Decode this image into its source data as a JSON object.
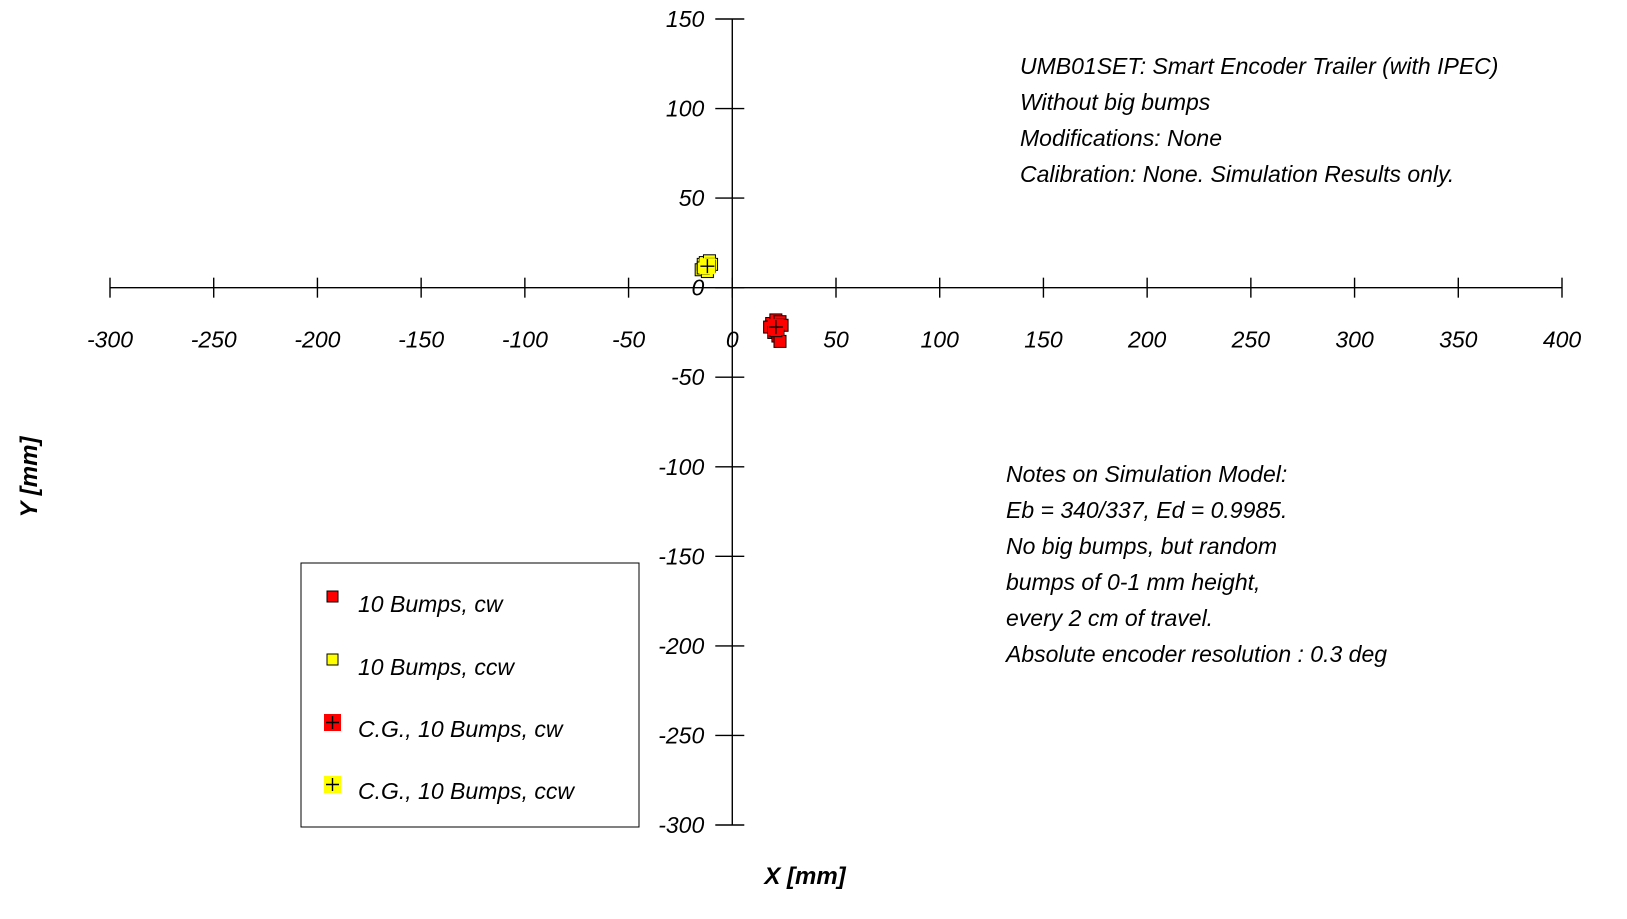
{
  "chart_data": {
    "type": "scatter",
    "xlabel": "X [mm]",
    "ylabel": "Y [mm]",
    "xlim": [
      -300,
      400
    ],
    "ylim": [
      -300,
      150
    ],
    "x_ticks": [
      -300,
      -250,
      -200,
      -150,
      -100,
      -50,
      0,
      50,
      100,
      150,
      200,
      250,
      300,
      350,
      400
    ],
    "y_ticks": [
      150,
      100,
      50,
      0,
      -50,
      -100,
      -150,
      -200,
      -250,
      -300
    ],
    "x_tick_labels": [
      "-300",
      "-250",
      "-200",
      "-150",
      "-100",
      "-50",
      "0",
      "50",
      "100",
      "150",
      "200",
      "250",
      "300",
      "350",
      "400"
    ],
    "y_tick_labels": [
      "150",
      "100",
      "50",
      "0",
      "-50",
      "-100",
      "-150",
      "-200",
      "-250",
      "-300"
    ],
    "grid": false,
    "legend_position": "bottom-left",
    "series": [
      {
        "name": "10 Bumps, cw",
        "marker": "small-square",
        "color": "#ff0000",
        "points": [
          [
            19,
            -20
          ],
          [
            21,
            -18
          ],
          [
            23,
            -19
          ],
          [
            18,
            -22
          ],
          [
            20,
            -25
          ],
          [
            22,
            -23
          ],
          [
            24,
            -21
          ],
          [
            22,
            -27
          ],
          [
            23,
            -30
          ],
          [
            21,
            -24
          ]
        ]
      },
      {
        "name": "10 Bumps, ccw",
        "marker": "small-square",
        "color": "#ffff00",
        "points": [
          [
            -15,
            10
          ],
          [
            -14,
            13
          ],
          [
            -13,
            14
          ],
          [
            -12,
            12
          ],
          [
            -11,
            15
          ],
          [
            -13,
            11
          ],
          [
            -10,
            13
          ],
          [
            -12,
            9
          ],
          [
            -14,
            11
          ],
          [
            -11,
            12
          ]
        ]
      },
      {
        "name": "C.G., 10 Bumps, cw",
        "marker": "big-square-plus",
        "color": "#ff0000",
        "points": [
          [
            21,
            -22
          ]
        ]
      },
      {
        "name": "C.G., 10 Bumps, ccw",
        "marker": "big-square-plus",
        "color": "#ffff00",
        "points": [
          [
            -12,
            12
          ]
        ]
      }
    ],
    "annotations": {
      "header": [
        "UMB01SET: Smart Encoder Trailer (with IPEC)",
        "Without big bumps",
        "Modifications: None",
        "Calibration:  None. Simulation Results only."
      ],
      "notes": [
        "Notes on Simulation Model:",
        "Eb = 340/337, Ed = 0.9985.",
        "No big bumps, but random",
        "bumps of 0-1 mm height,",
        "every 2 cm of travel.",
        "Absolute encoder resolution : 0.3 deg"
      ]
    }
  }
}
